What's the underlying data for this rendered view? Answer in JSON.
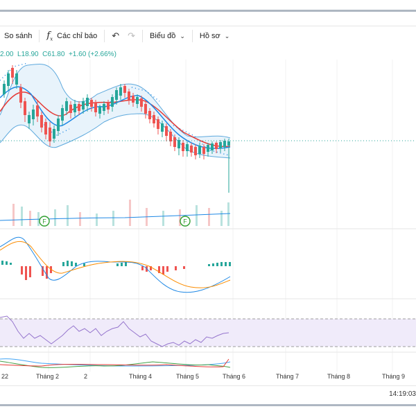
{
  "toolbar": {
    "compare_label": "So sánh",
    "indicators_label": "Các chỉ báo",
    "undo_icon": "undo-icon",
    "redo_icon": "redo-icon",
    "chart_type_label": "Biểu đồ",
    "profile_label": "Hồ sơ"
  },
  "legend": {
    "ohlc_text": "2.00  L18.90  C61.80  +1.60 (+2.66%)"
  },
  "xaxis": {
    "labels": [
      "22",
      "Tháng 2",
      "2",
      "Tháng 4",
      "Tháng 5",
      "Tháng 6",
      "Tháng 7",
      "Tháng 8",
      "Tháng 9"
    ]
  },
  "markers": {
    "f1": "F",
    "f2": "F"
  },
  "status": {
    "clock": "14:19:03"
  },
  "colors": {
    "up": "#26a69a",
    "down": "#ef5350",
    "ma_red": "#e53935",
    "ma_blue": "#1e88e5",
    "band": "#5ea9dd",
    "rsi": "#9575cd"
  }
}
